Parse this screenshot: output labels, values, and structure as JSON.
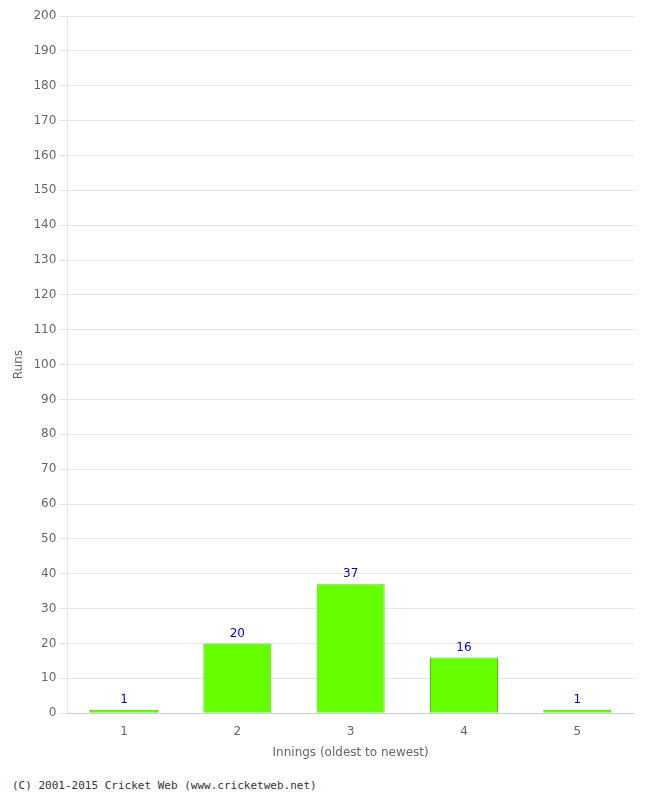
{
  "chart_data": {
    "type": "bar",
    "categories": [
      1,
      2,
      3,
      4,
      5
    ],
    "values": [
      1,
      20,
      37,
      16,
      1
    ],
    "color": "#66ff00",
    "xlabel": "Innings (oldest to newest)",
    "ylabel": "Runs",
    "ylim": [
      0,
      200
    ],
    "yticks": [
      0,
      10,
      20,
      30,
      40,
      50,
      60,
      70,
      80,
      90,
      100,
      110,
      120,
      130,
      140,
      150,
      160,
      170,
      180,
      190,
      200
    ],
    "grid": true,
    "data_labels": true,
    "annotations": [
      "(C) 2001-2015 Cricket Web (www.cricketweb.net)"
    ]
  }
}
